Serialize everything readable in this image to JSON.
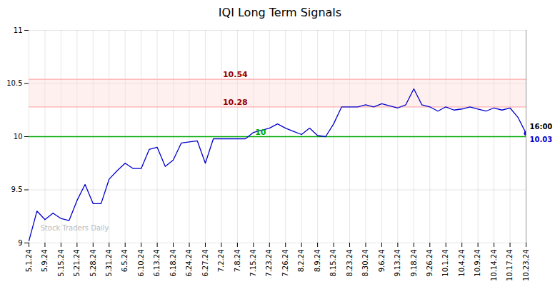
{
  "chart_data": {
    "type": "line",
    "title": "IQI Long Term Signals",
    "categories": [
      "5.1.24",
      null,
      "5.9.24",
      null,
      "5.15.24",
      null,
      "5.21.24",
      null,
      "5.28.24",
      null,
      "5.31.24",
      null,
      "6.5.24",
      null,
      "6.10.24",
      null,
      "6.13.24",
      null,
      "6.18.24",
      null,
      "6.24.24",
      null,
      "6.27.24",
      null,
      "7.2.24",
      null,
      "7.8.24",
      null,
      "7.15.24",
      null,
      "7.23.24",
      null,
      "7.26.24",
      null,
      "8.2.24",
      null,
      "8.9.24",
      null,
      "8.15.24",
      null,
      "8.23.24",
      null,
      "8.30.24",
      null,
      "9.6.24",
      null,
      "9.13.24",
      null,
      "9.18.24",
      null,
      "9.26.24",
      null,
      "10.1.24",
      null,
      "10.4.24",
      null,
      "10.9.24",
      null,
      "10.14.24",
      null,
      "10.17.24",
      null,
      "10.23.24"
    ],
    "values": [
      9.02,
      9.3,
      9.22,
      9.28,
      9.23,
      9.21,
      9.4,
      9.55,
      9.37,
      9.37,
      9.6,
      9.68,
      9.75,
      9.7,
      9.7,
      9.88,
      9.9,
      9.72,
      9.78,
      9.94,
      9.95,
      9.96,
      9.75,
      9.98,
      9.98,
      9.98,
      9.98,
      9.98,
      10.04,
      10.06,
      10.08,
      10.12,
      10.08,
      10.05,
      10.02,
      10.08,
      10.01,
      10.0,
      10.12,
      10.28,
      10.28,
      10.28,
      10.3,
      10.28,
      10.31,
      10.29,
      10.27,
      10.3,
      10.45,
      10.3,
      10.28,
      10.24,
      10.28,
      10.25,
      10.26,
      10.28,
      10.26,
      10.24,
      10.27,
      10.25,
      10.27,
      10.18,
      10.03
    ],
    "color": "#0000cc",
    "ylim": [
      9.0,
      11.0
    ],
    "yticks": [
      9,
      9.5,
      10,
      10.5,
      11
    ],
    "grid": true,
    "band": {
      "from": 10.28,
      "to": 10.54,
      "color": "#ffdddd"
    },
    "reference_lines": [
      {
        "y": 10.0,
        "color": "#00aa00",
        "label": "10",
        "label_color": "#00aa00"
      },
      {
        "y": 10.28,
        "color": "#ffaaaa",
        "label": "10.28",
        "label_color": "#990000"
      },
      {
        "y": 10.54,
        "color": "#ffaaaa",
        "label": "10.54",
        "label_color": "#990000"
      }
    ],
    "vline_color": "#888888",
    "annotations": [
      {
        "text": "16:00",
        "color": "#000000"
      },
      {
        "text": "10.03",
        "color": "#0000cc"
      }
    ],
    "watermark": {
      "text": "Stock Traders Daily",
      "color": "#bbbbbb"
    }
  }
}
